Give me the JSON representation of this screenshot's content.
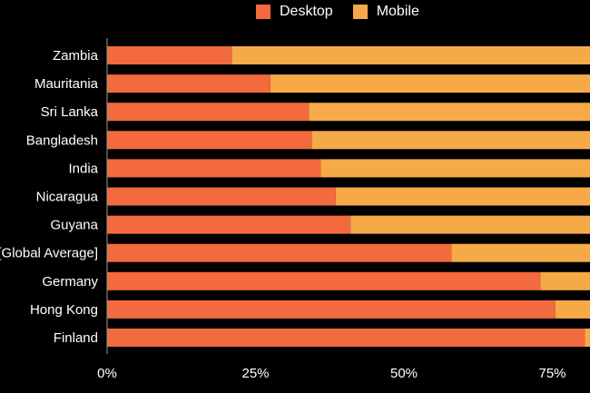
{
  "chart_data": {
    "type": "bar",
    "orientation": "horizontal",
    "stacked": true,
    "categories": [
      "Zambia",
      "Mauritania",
      "Sri Lanka",
      "Bangladesh",
      "India",
      "Nicaragua",
      "Guyana",
      "[Global Average]",
      "Germany",
      "Hong Kong",
      "Finland"
    ],
    "series": [
      {
        "name": "Desktop",
        "color": "#f26a3d",
        "values": [
          21,
          27.5,
          34,
          34.5,
          36,
          38.5,
          41,
          58,
          73,
          75.5,
          80.5
        ]
      },
      {
        "name": "Mobile",
        "color": "#f6aa47",
        "values": [
          79,
          72.5,
          66,
          65.5,
          64,
          61.5,
          59,
          42,
          27,
          24.5,
          19.5
        ]
      }
    ],
    "xlim": [
      0,
      100
    ],
    "x_ticks": [
      "0%",
      "25%",
      "50%",
      "75%"
    ],
    "x_tick_values": [
      0,
      25,
      50,
      75
    ],
    "grid": false,
    "legend_position": "top-center",
    "background": "#000000",
    "text_color": "#ffffff"
  }
}
